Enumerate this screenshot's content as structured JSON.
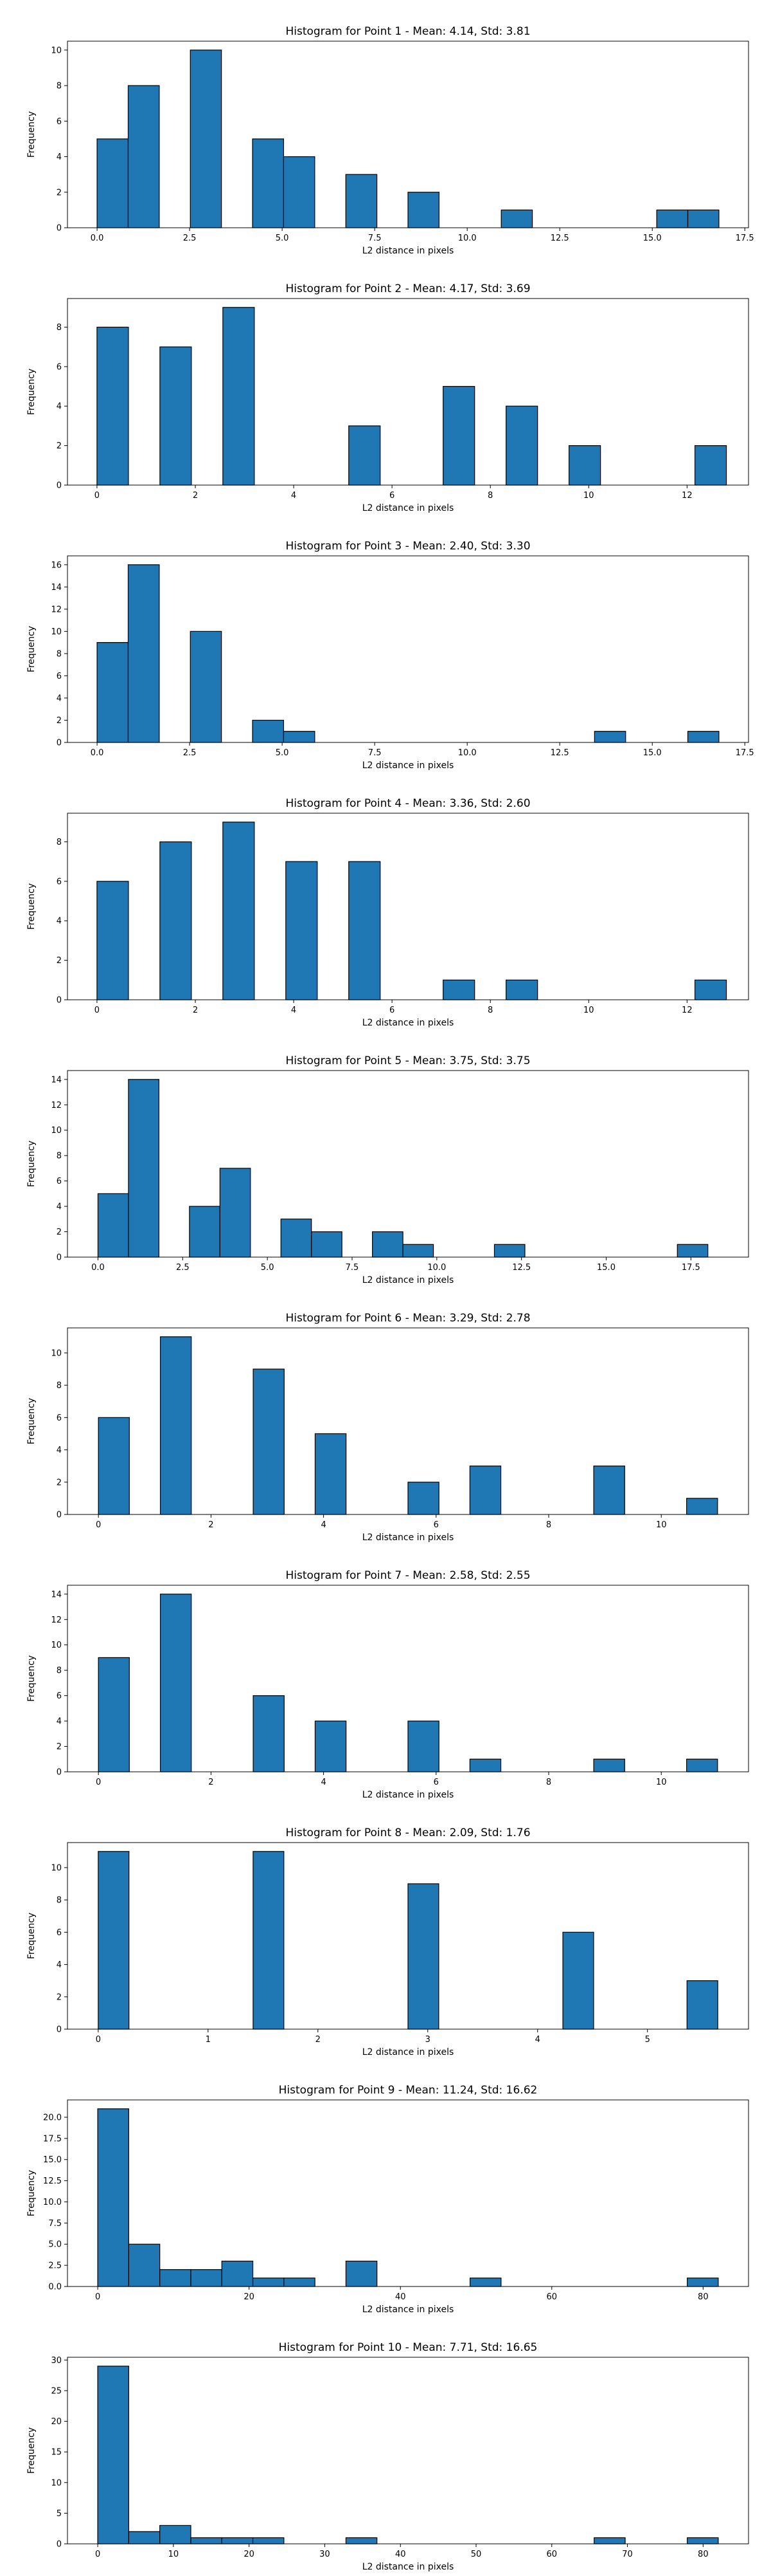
{
  "chart_data": [
    {
      "type": "bar",
      "title": "Histogram for Point 1 - Mean: 4.14, Std: 3.81",
      "xlabel": "L2 distance in pixels",
      "ylabel": "Frequency",
      "xlim": [
        -0.8,
        17.6
      ],
      "ylim": [
        0,
        10.5
      ],
      "xticks": [
        0.0,
        2.5,
        5.0,
        7.5,
        10.0,
        12.5,
        15.0,
        17.5
      ],
      "xtick_labels": [
        "0.0",
        "2.5",
        "5.0",
        "7.5",
        "10.0",
        "12.5",
        "15.0",
        "17.5"
      ],
      "yticks": [
        0,
        2,
        4,
        6,
        8,
        10
      ],
      "ytick_labels": [
        "0",
        "2",
        "4",
        "6",
        "8",
        "10"
      ],
      "bins": [
        {
          "x0": 0.0,
          "x1": 0.84,
          "value": 5
        },
        {
          "x0": 0.84,
          "x1": 1.68,
          "value": 8
        },
        {
          "x0": 2.52,
          "x1": 3.36,
          "value": 10
        },
        {
          "x0": 4.2,
          "x1": 5.04,
          "value": 5
        },
        {
          "x0": 5.04,
          "x1": 5.88,
          "value": 4
        },
        {
          "x0": 6.72,
          "x1": 7.56,
          "value": 3
        },
        {
          "x0": 8.4,
          "x1": 9.24,
          "value": 2
        },
        {
          "x0": 10.92,
          "x1": 11.76,
          "value": 1
        },
        {
          "x0": 15.12,
          "x1": 15.96,
          "value": 1
        },
        {
          "x0": 15.96,
          "x1": 16.8,
          "value": 1
        }
      ]
    },
    {
      "type": "bar",
      "title": "Histogram for Point 2 - Mean: 4.17, Std: 3.69",
      "xlabel": "L2 distance in pixels",
      "ylabel": "Frequency",
      "xlim": [
        -0.6,
        13.25
      ],
      "ylim": [
        0,
        9.45
      ],
      "xticks": [
        0,
        2,
        4,
        6,
        8,
        10,
        12
      ],
      "xtick_labels": [
        "0",
        "2",
        "4",
        "6",
        "8",
        "10",
        "12"
      ],
      "yticks": [
        0,
        2,
        4,
        6,
        8
      ],
      "ytick_labels": [
        "0",
        "2",
        "4",
        "6",
        "8"
      ],
      "bins": [
        {
          "x0": 0.0,
          "x1": 0.64,
          "value": 8
        },
        {
          "x0": 1.28,
          "x1": 1.92,
          "value": 7
        },
        {
          "x0": 2.56,
          "x1": 3.2,
          "value": 9
        },
        {
          "x0": 5.12,
          "x1": 5.76,
          "value": 3
        },
        {
          "x0": 7.04,
          "x1": 7.68,
          "value": 5
        },
        {
          "x0": 8.32,
          "x1": 8.96,
          "value": 4
        },
        {
          "x0": 9.6,
          "x1": 10.24,
          "value": 2
        },
        {
          "x0": 12.16,
          "x1": 12.8,
          "value": 2
        }
      ]
    },
    {
      "type": "bar",
      "title": "Histogram for Point 3 - Mean: 2.40, Std: 3.30",
      "xlabel": "L2 distance in pixels",
      "ylabel": "Frequency",
      "xlim": [
        -0.8,
        17.6
      ],
      "ylim": [
        0,
        16.8
      ],
      "xticks": [
        0.0,
        2.5,
        5.0,
        7.5,
        10.0,
        12.5,
        15.0,
        17.5
      ],
      "xtick_labels": [
        "0.0",
        "2.5",
        "5.0",
        "7.5",
        "10.0",
        "12.5",
        "15.0",
        "17.5"
      ],
      "yticks": [
        0,
        2,
        4,
        6,
        8,
        10,
        12,
        14,
        16
      ],
      "ytick_labels": [
        "0",
        "2",
        "4",
        "6",
        "8",
        "10",
        "12",
        "14",
        "16"
      ],
      "bins": [
        {
          "x0": 0.0,
          "x1": 0.84,
          "value": 9
        },
        {
          "x0": 0.84,
          "x1": 1.68,
          "value": 16
        },
        {
          "x0": 2.52,
          "x1": 3.36,
          "value": 10
        },
        {
          "x0": 4.2,
          "x1": 5.04,
          "value": 2
        },
        {
          "x0": 5.04,
          "x1": 5.88,
          "value": 1
        },
        {
          "x0": 13.44,
          "x1": 14.28,
          "value": 1
        },
        {
          "x0": 15.96,
          "x1": 16.8,
          "value": 1
        }
      ]
    },
    {
      "type": "bar",
      "title": "Histogram for Point 4 - Mean: 3.36, Std: 2.60",
      "xlabel": "L2 distance in pixels",
      "ylabel": "Frequency",
      "xlim": [
        -0.6,
        13.25
      ],
      "ylim": [
        0,
        9.45
      ],
      "xticks": [
        0,
        2,
        4,
        6,
        8,
        10,
        12
      ],
      "xtick_labels": [
        "0",
        "2",
        "4",
        "6",
        "8",
        "10",
        "12"
      ],
      "yticks": [
        0,
        2,
        4,
        6,
        8
      ],
      "ytick_labels": [
        "0",
        "2",
        "4",
        "6",
        "8"
      ],
      "bins": [
        {
          "x0": 0.0,
          "x1": 0.64,
          "value": 6
        },
        {
          "x0": 1.28,
          "x1": 1.92,
          "value": 8
        },
        {
          "x0": 2.56,
          "x1": 3.2,
          "value": 9
        },
        {
          "x0": 3.84,
          "x1": 4.48,
          "value": 7
        },
        {
          "x0": 5.12,
          "x1": 5.76,
          "value": 7
        },
        {
          "x0": 7.04,
          "x1": 7.68,
          "value": 1
        },
        {
          "x0": 8.32,
          "x1": 8.96,
          "value": 1
        },
        {
          "x0": 12.16,
          "x1": 12.8,
          "value": 1
        }
      ]
    },
    {
      "type": "bar",
      "title": "Histogram for Point 5 - Mean: 3.75, Std: 3.75",
      "xlabel": "L2 distance in pixels",
      "ylabel": "Frequency",
      "xlim": [
        -0.9,
        19.2
      ],
      "ylim": [
        0,
        14.7
      ],
      "xticks": [
        0.0,
        2.5,
        5.0,
        7.5,
        10.0,
        12.5,
        15.0,
        17.5
      ],
      "xtick_labels": [
        "0.0",
        "2.5",
        "5.0",
        "7.5",
        "10.0",
        "12.5",
        "15.0",
        "17.5"
      ],
      "yticks": [
        0,
        2,
        4,
        6,
        8,
        10,
        12,
        14
      ],
      "ytick_labels": [
        "0",
        "2",
        "4",
        "6",
        "8",
        "10",
        "12",
        "14"
      ],
      "bins": [
        {
          "x0": 0.0,
          "x1": 0.9,
          "value": 5
        },
        {
          "x0": 0.9,
          "x1": 1.8,
          "value": 14
        },
        {
          "x0": 2.7,
          "x1": 3.6,
          "value": 4
        },
        {
          "x0": 3.6,
          "x1": 4.5,
          "value": 7
        },
        {
          "x0": 5.4,
          "x1": 6.3,
          "value": 3
        },
        {
          "x0": 6.3,
          "x1": 7.2,
          "value": 2
        },
        {
          "x0": 8.1,
          "x1": 9.0,
          "value": 2
        },
        {
          "x0": 9.0,
          "x1": 9.9,
          "value": 1
        },
        {
          "x0": 11.7,
          "x1": 12.6,
          "value": 1
        },
        {
          "x0": 17.1,
          "x1": 18.0,
          "value": 1
        }
      ]
    },
    {
      "type": "bar",
      "title": "Histogram for Point 6 - Mean: 3.29, Std: 2.78",
      "xlabel": "L2 distance in pixels",
      "ylabel": "Frequency",
      "xlim": [
        -0.55,
        11.55
      ],
      "ylim": [
        0,
        11.55
      ],
      "xticks": [
        0,
        2,
        4,
        6,
        8,
        10
      ],
      "xtick_labels": [
        "0",
        "2",
        "4",
        "6",
        "8",
        "10"
      ],
      "yticks": [
        0,
        2,
        4,
        6,
        8,
        10
      ],
      "ytick_labels": [
        "0",
        "2",
        "4",
        "6",
        "8",
        "10"
      ],
      "bins": [
        {
          "x0": 0.0,
          "x1": 0.55,
          "value": 6
        },
        {
          "x0": 1.1,
          "x1": 1.65,
          "value": 11
        },
        {
          "x0": 2.75,
          "x1": 3.3,
          "value": 9
        },
        {
          "x0": 3.85,
          "x1": 4.4,
          "value": 5
        },
        {
          "x0": 5.5,
          "x1": 6.05,
          "value": 2
        },
        {
          "x0": 6.6,
          "x1": 7.15,
          "value": 3
        },
        {
          "x0": 8.8,
          "x1": 9.35,
          "value": 3
        },
        {
          "x0": 10.45,
          "x1": 11.0,
          "value": 1
        }
      ]
    },
    {
      "type": "bar",
      "title": "Histogram for Point 7 - Mean: 2.58, Std: 2.55",
      "xlabel": "L2 distance in pixels",
      "ylabel": "Frequency",
      "xlim": [
        -0.55,
        11.55
      ],
      "ylim": [
        0,
        14.7
      ],
      "xticks": [
        0,
        2,
        4,
        6,
        8,
        10
      ],
      "xtick_labels": [
        "0",
        "2",
        "4",
        "6",
        "8",
        "10"
      ],
      "yticks": [
        0,
        2,
        4,
        6,
        8,
        10,
        12,
        14
      ],
      "ytick_labels": [
        "0",
        "2",
        "4",
        "6",
        "8",
        "10",
        "12",
        "14"
      ],
      "bins": [
        {
          "x0": 0.0,
          "x1": 0.55,
          "value": 9
        },
        {
          "x0": 1.1,
          "x1": 1.65,
          "value": 14
        },
        {
          "x0": 2.75,
          "x1": 3.3,
          "value": 6
        },
        {
          "x0": 3.85,
          "x1": 4.4,
          "value": 4
        },
        {
          "x0": 5.5,
          "x1": 6.05,
          "value": 4
        },
        {
          "x0": 6.6,
          "x1": 7.15,
          "value": 1
        },
        {
          "x0": 8.8,
          "x1": 9.35,
          "value": 1
        },
        {
          "x0": 10.45,
          "x1": 11.0,
          "value": 1
        }
      ]
    },
    {
      "type": "bar",
      "title": "Histogram for Point 8 - Mean: 2.09, Std: 1.76",
      "xlabel": "L2 distance in pixels",
      "ylabel": "Frequency",
      "xlim": [
        -0.28,
        5.92
      ],
      "ylim": [
        0,
        11.55
      ],
      "xticks": [
        0,
        1,
        2,
        3,
        4,
        5
      ],
      "xtick_labels": [
        "0",
        "1",
        "2",
        "3",
        "4",
        "5"
      ],
      "yticks": [
        0,
        2,
        4,
        6,
        8,
        10
      ],
      "ytick_labels": [
        "0",
        "2",
        "4",
        "6",
        "8",
        "10"
      ],
      "bins": [
        {
          "x0": 0.0,
          "x1": 0.28,
          "value": 11
        },
        {
          "x0": 1.41,
          "x1": 1.69,
          "value": 11
        },
        {
          "x0": 2.82,
          "x1": 3.1,
          "value": 9
        },
        {
          "x0": 4.23,
          "x1": 4.51,
          "value": 6
        },
        {
          "x0": 5.36,
          "x1": 5.64,
          "value": 3
        }
      ]
    },
    {
      "type": "bar",
      "title": "Histogram for Point 9 - Mean: 11.24, Std: 16.62",
      "xlabel": "L2 distance in pixels",
      "ylabel": "Frequency",
      "xlim": [
        -4.0,
        86.0
      ],
      "ylim": [
        0,
        22.05
      ],
      "xticks": [
        0,
        20,
        40,
        60,
        80
      ],
      "xtick_labels": [
        "0",
        "20",
        "40",
        "60",
        "80"
      ],
      "yticks": [
        0.0,
        2.5,
        5.0,
        7.5,
        10.0,
        12.5,
        15.0,
        17.5,
        20.0
      ],
      "ytick_labels": [
        "0.0",
        "2.5",
        "5.0",
        "7.5",
        "10.0",
        "12.5",
        "15.0",
        "17.5",
        "20.0"
      ],
      "bins": [
        {
          "x0": 0.0,
          "x1": 4.1,
          "value": 21
        },
        {
          "x0": 4.1,
          "x1": 8.2,
          "value": 5
        },
        {
          "x0": 8.2,
          "x1": 12.3,
          "value": 2
        },
        {
          "x0": 12.3,
          "x1": 16.4,
          "value": 2
        },
        {
          "x0": 16.4,
          "x1": 20.5,
          "value": 3
        },
        {
          "x0": 20.5,
          "x1": 24.6,
          "value": 1
        },
        {
          "x0": 24.6,
          "x1": 28.7,
          "value": 1
        },
        {
          "x0": 32.8,
          "x1": 36.9,
          "value": 3
        },
        {
          "x0": 49.2,
          "x1": 53.3,
          "value": 1
        },
        {
          "x0": 77.9,
          "x1": 82.0,
          "value": 1
        }
      ]
    },
    {
      "type": "bar",
      "title": "Histogram for Point 10 - Mean: 7.71, Std: 16.65",
      "xlabel": "L2 distance in pixels",
      "ylabel": "Frequency",
      "xlim": [
        -4.0,
        86.0
      ],
      "ylim": [
        0,
        30.45
      ],
      "xticks": [
        0,
        10,
        20,
        30,
        40,
        50,
        60,
        70,
        80
      ],
      "xtick_labels": [
        "0",
        "10",
        "20",
        "30",
        "40",
        "50",
        "60",
        "70",
        "80"
      ],
      "yticks": [
        0,
        5,
        10,
        15,
        20,
        25,
        30
      ],
      "ytick_labels": [
        "0",
        "5",
        "10",
        "15",
        "20",
        "25",
        "30"
      ],
      "bins": [
        {
          "x0": 0.0,
          "x1": 4.1,
          "value": 29
        },
        {
          "x0": 4.1,
          "x1": 8.2,
          "value": 2
        },
        {
          "x0": 8.2,
          "x1": 12.3,
          "value": 3
        },
        {
          "x0": 12.3,
          "x1": 16.4,
          "value": 1
        },
        {
          "x0": 16.4,
          "x1": 20.5,
          "value": 1
        },
        {
          "x0": 20.5,
          "x1": 24.6,
          "value": 1
        },
        {
          "x0": 32.8,
          "x1": 36.9,
          "value": 1
        },
        {
          "x0": 65.6,
          "x1": 69.7,
          "value": 1
        },
        {
          "x0": 77.9,
          "x1": 82.0,
          "value": 1
        }
      ]
    }
  ],
  "style": {
    "bar_fill": "#1f77b4",
    "bar_edge": "#000000",
    "axis_color": "#000000",
    "background": "#ffffff"
  }
}
